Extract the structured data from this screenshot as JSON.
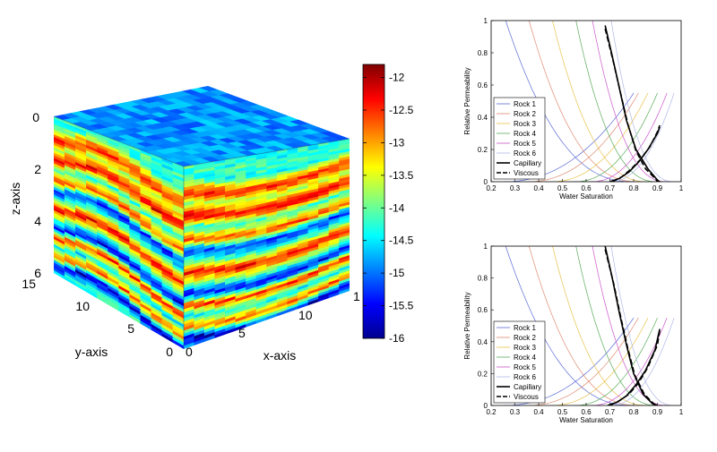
{
  "cube": {
    "type": "heatmap",
    "x_axis": {
      "label": "x-axis",
      "ticks": [
        "0",
        "5",
        "10",
        "1"
      ]
    },
    "y_axis": {
      "label": "y-axis",
      "ticks": [
        "0",
        "5",
        "10",
        "15"
      ]
    },
    "z_axis": {
      "label": "z-axis",
      "ticks": [
        "0",
        "2",
        "4",
        "6"
      ]
    },
    "colorbar": {
      "ticks": [
        "-12",
        "-12.5",
        "-13",
        "-13.5",
        "-14",
        "-14.5",
        "-15",
        "-15.5",
        "-16"
      ],
      "range": [
        -16,
        -11.8
      ],
      "colormap": "jet"
    }
  },
  "chart_data": [
    {
      "type": "line",
      "xlabel": "Water Saturation",
      "ylabel": "Relative Permeability",
      "xlim": [
        0.2,
        1
      ],
      "ylim": [
        0,
        1
      ],
      "x_ticks": [
        "0.2",
        "0.3",
        "0.4",
        "0.5",
        "0.6",
        "0.7",
        "0.8",
        "0.9",
        "1"
      ],
      "y_ticks": [
        "0",
        "0.2",
        "0.4",
        "0.6",
        "0.8",
        "1"
      ],
      "legend": "bottom-left",
      "rock_series": [
        {
          "name": "Rock 1",
          "color": "#5b6bd8",
          "swc": 0.25,
          "sor_end": 0.8
        },
        {
          "name": "Rock 2",
          "color": "#e08a70",
          "swc": 0.35,
          "sor_end": 0.82
        },
        {
          "name": "Rock 3",
          "color": "#e8c24a",
          "swc": 0.45,
          "sor_end": 0.86
        },
        {
          "name": "Rock 4",
          "color": "#5aab5a",
          "swc": 0.55,
          "sor_end": 0.9
        },
        {
          "name": "Rock 5",
          "color": "#cc55cc",
          "swc": 0.62,
          "sor_end": 0.94
        },
        {
          "name": "Rock 6",
          "color": "#b0b8e8",
          "swc": 0.7,
          "sor_end": 0.97
        }
      ],
      "black_series": [
        {
          "name": "Capillary",
          "style": "solid",
          "krw": [
            [
              0.7,
              0.0
            ],
            [
              0.74,
              0.02
            ],
            [
              0.78,
              0.06
            ],
            [
              0.82,
              0.12
            ],
            [
              0.86,
              0.2
            ],
            [
              0.9,
              0.3
            ],
            [
              0.91,
              0.34
            ]
          ],
          "kro": [
            [
              0.68,
              0.97
            ],
            [
              0.71,
              0.78
            ],
            [
              0.74,
              0.58
            ],
            [
              0.77,
              0.38
            ],
            [
              0.81,
              0.2
            ],
            [
              0.86,
              0.08
            ],
            [
              0.9,
              0.01
            ],
            [
              0.91,
              0.0
            ]
          ]
        },
        {
          "name": "Viscous",
          "style": "dashed",
          "krw": [
            [
              0.71,
              0.0
            ],
            [
              0.75,
              0.03
            ],
            [
              0.79,
              0.08
            ],
            [
              0.83,
              0.14
            ],
            [
              0.87,
              0.22
            ],
            [
              0.9,
              0.31
            ],
            [
              0.91,
              0.35
            ]
          ],
          "kro": [
            [
              0.68,
              0.95
            ],
            [
              0.715,
              0.74
            ],
            [
              0.745,
              0.55
            ],
            [
              0.775,
              0.36
            ],
            [
              0.81,
              0.19
            ],
            [
              0.85,
              0.08
            ],
            [
              0.89,
              0.02
            ],
            [
              0.9,
              0.0
            ]
          ]
        }
      ]
    },
    {
      "type": "line",
      "xlabel": "Water Saturation",
      "ylabel": "Relative Permeability",
      "xlim": [
        0.2,
        1
      ],
      "ylim": [
        0,
        1
      ],
      "x_ticks": [
        "0.2",
        "0.3",
        "0.4",
        "0.5",
        "0.6",
        "0.7",
        "0.8",
        "0.9",
        "1"
      ],
      "y_ticks": [
        "0",
        "0.2",
        "0.4",
        "0.6",
        "0.8",
        "1"
      ],
      "legend": "bottom-left",
      "rock_series": [
        {
          "name": "Rock 1",
          "color": "#5b6bd8",
          "swc": 0.25,
          "sor_end": 0.8
        },
        {
          "name": "Rock 2",
          "color": "#e08a70",
          "swc": 0.35,
          "sor_end": 0.82
        },
        {
          "name": "Rock 3",
          "color": "#e8c24a",
          "swc": 0.45,
          "sor_end": 0.86
        },
        {
          "name": "Rock 4",
          "color": "#5aab5a",
          "swc": 0.55,
          "sor_end": 0.9
        },
        {
          "name": "Rock 5",
          "color": "#cc55cc",
          "swc": 0.62,
          "sor_end": 0.94
        },
        {
          "name": "Rock 6",
          "color": "#b0b8e8",
          "swc": 0.7,
          "sor_end": 0.97
        }
      ],
      "black_series": [
        {
          "name": "Capillary",
          "style": "solid",
          "krw": [
            [
              0.69,
              0.0
            ],
            [
              0.73,
              0.02
            ],
            [
              0.77,
              0.06
            ],
            [
              0.81,
              0.13
            ],
            [
              0.85,
              0.22
            ],
            [
              0.89,
              0.35
            ],
            [
              0.91,
              0.48
            ]
          ],
          "kro": [
            [
              0.68,
              1.0
            ],
            [
              0.71,
              0.8
            ],
            [
              0.74,
              0.58
            ],
            [
              0.77,
              0.38
            ],
            [
              0.8,
              0.2
            ],
            [
              0.84,
              0.07
            ],
            [
              0.88,
              0.01
            ],
            [
              0.9,
              0.0
            ]
          ]
        },
        {
          "name": "Viscous",
          "style": "dashed",
          "krw": [
            [
              0.7,
              0.0
            ],
            [
              0.74,
              0.03
            ],
            [
              0.78,
              0.07
            ],
            [
              0.82,
              0.14
            ],
            [
              0.86,
              0.24
            ],
            [
              0.9,
              0.38
            ],
            [
              0.91,
              0.47
            ]
          ],
          "kro": [
            [
              0.68,
              0.98
            ],
            [
              0.715,
              0.77
            ],
            [
              0.745,
              0.56
            ],
            [
              0.775,
              0.36
            ],
            [
              0.805,
              0.19
            ],
            [
              0.845,
              0.07
            ],
            [
              0.885,
              0.01
            ],
            [
              0.9,
              0.0
            ]
          ]
        }
      ]
    }
  ]
}
